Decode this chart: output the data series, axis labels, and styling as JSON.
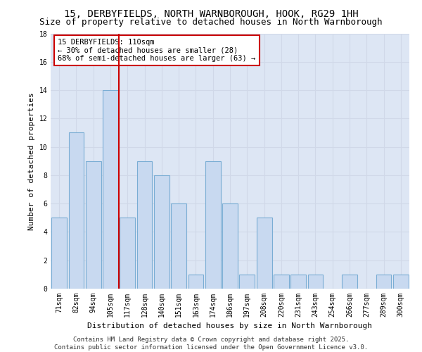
{
  "title1": "15, DERBYFIELDS, NORTH WARNBOROUGH, HOOK, RG29 1HH",
  "title2": "Size of property relative to detached houses in North Warnborough",
  "xlabel": "Distribution of detached houses by size in North Warnborough",
  "ylabel": "Number of detached properties",
  "categories": [
    "71sqm",
    "82sqm",
    "94sqm",
    "105sqm",
    "117sqm",
    "128sqm",
    "140sqm",
    "151sqm",
    "163sqm",
    "174sqm",
    "186sqm",
    "197sqm",
    "208sqm",
    "220sqm",
    "231sqm",
    "243sqm",
    "254sqm",
    "266sqm",
    "277sqm",
    "289sqm",
    "300sqm"
  ],
  "values": [
    5,
    11,
    9,
    14,
    5,
    9,
    8,
    6,
    1,
    9,
    6,
    1,
    5,
    1,
    1,
    1,
    0,
    1,
    0,
    1,
    1
  ],
  "bar_color": "#c8d9f0",
  "bar_edge_color": "#7aadd4",
  "vline_color": "#cc0000",
  "annotation_text": "15 DERBYFIELDS: 110sqm\n← 30% of detached houses are smaller (28)\n68% of semi-detached houses are larger (63) →",
  "annotation_box_color": "#ffffff",
  "annotation_box_edge": "#cc0000",
  "ylim": [
    0,
    18
  ],
  "yticks": [
    0,
    2,
    4,
    6,
    8,
    10,
    12,
    14,
    16,
    18
  ],
  "grid_color": "#d0d8e8",
  "bg_color": "#dde6f4",
  "footer_text": "Contains HM Land Registry data © Crown copyright and database right 2025.\nContains public sector information licensed under the Open Government Licence v3.0.",
  "title_fontsize": 10,
  "subtitle_fontsize": 9,
  "axis_label_fontsize": 8,
  "tick_fontsize": 7,
  "annotation_fontsize": 7.5,
  "footer_fontsize": 6.5
}
